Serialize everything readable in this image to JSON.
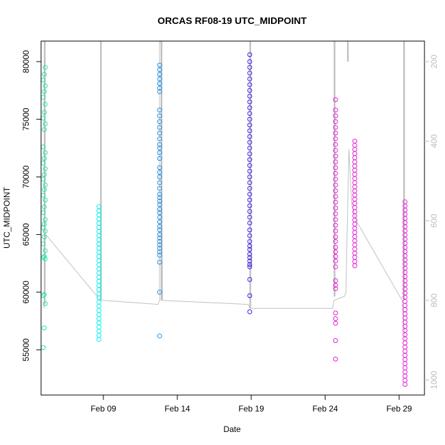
{
  "chart_data": {
    "type": "scatter",
    "title": "ORCAS RF08-19 UTC_MIDPOINT",
    "xlabel": "Date",
    "ylabel": "UTC_MIDPOINT",
    "x_ticks": [
      "Feb 09",
      "Feb 14",
      "Feb 19",
      "Feb 24",
      "Feb 29"
    ],
    "y_ticks": [
      55000,
      60000,
      65000,
      70000,
      75000,
      80000
    ],
    "y_range": [
      52000,
      82000
    ],
    "right_axis_ticks": [
      200,
      400,
      600,
      800,
      1000
    ],
    "right_axis_range": [
      1050,
      150
    ],
    "right_axis_reversed": true,
    "grid": false,
    "series": [
      {
        "x": "Feb 05",
        "color": "#1ee8a6",
        "points": "sparse",
        "values": [
          55200,
          56900,
          59000,
          59700,
          59800,
          62900,
          63000,
          63100,
          63600,
          64200,
          64800,
          65300,
          65600,
          65900,
          66300,
          66900,
          67400,
          68000,
          68400,
          68900,
          69300,
          69800,
          70200,
          70700,
          71200,
          71600,
          72100,
          72600,
          74100,
          74600,
          75100,
          75600,
          76300,
          76900,
          77400,
          77900,
          78400,
          78900,
          79500
        ]
      },
      {
        "x": "Feb 08.7",
        "color": "#00f0f0",
        "values_range": [
          55900,
          67500
        ]
      },
      {
        "x": "Feb 12.8",
        "color": "#1f8fe8",
        "values": [
          56200,
          60000,
          62600,
          63200,
          63500,
          63800,
          64100,
          64400,
          64700,
          65000,
          65400,
          65700,
          66100,
          66500,
          66900,
          67200,
          67600,
          67900,
          68200,
          68500,
          69000,
          69500,
          70000,
          70400,
          70800,
          71600,
          72100,
          72500,
          72800,
          73300,
          73800,
          74300,
          74800,
          75300,
          75800,
          77400,
          77700,
          78100,
          78500,
          78900,
          79300,
          79700
        ]
      },
      {
        "x": "Feb 18.9",
        "color": "#3a1ae8",
        "values": [
          58300,
          59700,
          61100,
          62200,
          62400,
          62700,
          63000,
          63300,
          63700,
          64000,
          64400,
          64900,
          65400,
          66000,
          66500,
          67000,
          67500,
          68000,
          68500,
          69000,
          69500,
          70000,
          70500,
          71000,
          71500,
          72000,
          72500,
          73000,
          73500,
          74000,
          74500,
          75000,
          75500,
          76000,
          76500,
          77000,
          77500,
          78000,
          78500,
          79000,
          79500,
          80000,
          80600
        ]
      },
      {
        "x": "Feb 24.7",
        "color": "#e41ad6",
        "values": [
          54200,
          55800,
          57300,
          57700,
          58200,
          60300,
          60600,
          61000,
          62200,
          62700,
          63100,
          63500,
          63900,
          64400,
          64800,
          65300,
          65800,
          66300,
          66800,
          67300,
          67800,
          68300,
          68800,
          69300,
          69800,
          70300,
          70800,
          71300,
          71800,
          72300,
          72800,
          73300,
          73800,
          74300,
          74800,
          75300,
          75800,
          76700
        ]
      },
      {
        "x": "Feb 26",
        "color": "#e41ad6",
        "values_range": [
          62300,
          73200
        ]
      },
      {
        "x": "Feb 29.4",
        "color": "#e41ad6",
        "values_range": [
          52000,
          68000
        ]
      }
    ],
    "altitude_trace_color": "#c0c0c0"
  }
}
